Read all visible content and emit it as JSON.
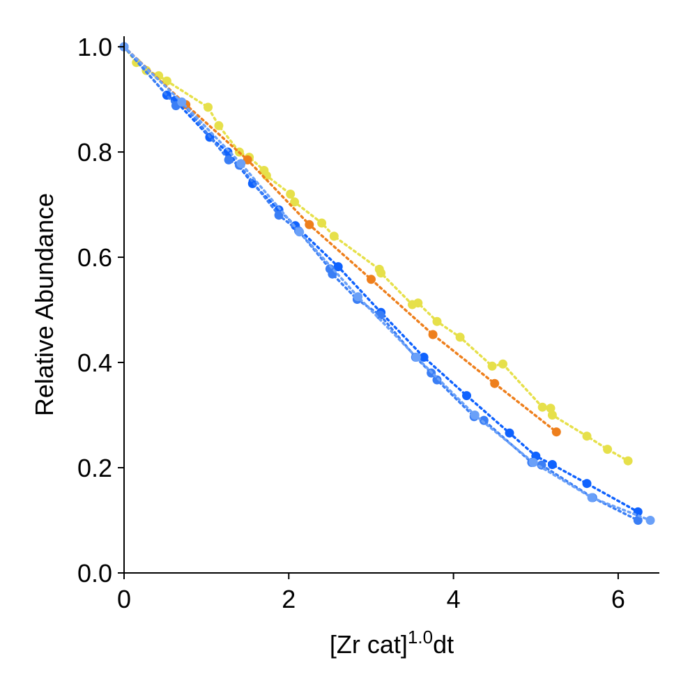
{
  "chart_data": {
    "type": "scatter",
    "title": "",
    "xlabel_base": "[Zr cat]",
    "xlabel_exp": "1.0",
    "xlabel_tail": "dt",
    "ylabel": "Relative Abundance",
    "xlim": [
      0,
      6.5
    ],
    "ylim": [
      0,
      1.02
    ],
    "xticks": [
      0,
      2,
      4,
      6
    ],
    "xtick_labels": [
      "0",
      "2",
      "4",
      "6"
    ],
    "yticks": [
      0,
      0.2,
      0.4,
      0.6,
      0.8,
      1.0
    ],
    "ytick_labels": [
      "0.0",
      "0.2",
      "0.4",
      "0.6",
      "0.8",
      "1.0"
    ],
    "grid": false,
    "legend": "none",
    "series": [
      {
        "color": "#e6e04a",
        "x": [
          0,
          0.15,
          0.27,
          0.42,
          0.52,
          1.02,
          1.15,
          1.4,
          1.52,
          1.7,
          1.73,
          2.02,
          2.07,
          2.4,
          2.55,
          3.1,
          3.12,
          3.5,
          3.57,
          3.8,
          4.08,
          4.47,
          4.6,
          5.08,
          5.18,
          5.2,
          5.62,
          5.87,
          6.12
        ],
        "y": [
          1.0,
          0.97,
          0.955,
          0.945,
          0.935,
          0.885,
          0.85,
          0.8,
          0.79,
          0.765,
          0.755,
          0.72,
          0.705,
          0.665,
          0.64,
          0.577,
          0.57,
          0.51,
          0.513,
          0.478,
          0.448,
          0.393,
          0.397,
          0.315,
          0.313,
          0.3,
          0.26,
          0.235,
          0.213
        ]
      },
      {
        "color": "#ee7f1c",
        "x": [
          0,
          0.75,
          1.5,
          2.25,
          3.0,
          3.75,
          4.5,
          5.25
        ],
        "y": [
          1.0,
          0.89,
          0.785,
          0.662,
          0.558,
          0.453,
          0.36,
          0.268
        ]
      },
      {
        "color": "#0f62fe",
        "x": [
          0,
          0.52,
          0.62,
          1.04,
          1.26,
          1.56,
          1.88,
          2.08,
          2.6,
          3.12,
          3.64,
          4.16,
          4.68,
          5.0,
          5.2,
          5.62,
          6.24
        ],
        "y": [
          1.0,
          0.908,
          0.898,
          0.828,
          0.8,
          0.74,
          0.69,
          0.66,
          0.582,
          0.495,
          0.41,
          0.337,
          0.266,
          0.222,
          0.206,
          0.17,
          0.116
        ]
      },
      {
        "color": "#3a7ef5",
        "x": [
          0,
          0.63,
          0.7,
          1.27,
          1.4,
          1.88,
          2.12,
          2.5,
          2.53,
          2.83,
          3.11,
          3.54,
          3.73,
          3.8,
          4.25,
          4.37,
          4.95,
          5.07,
          5.69,
          6.24
        ],
        "y": [
          1.0,
          0.888,
          0.895,
          0.785,
          0.775,
          0.68,
          0.65,
          0.578,
          0.568,
          0.52,
          0.49,
          0.41,
          0.38,
          0.367,
          0.297,
          0.29,
          0.21,
          0.205,
          0.143,
          0.1
        ]
      },
      {
        "color": "#6aa0f8",
        "x": [
          0,
          0.7,
          1.42,
          2.13,
          2.84,
          3.55,
          4.26,
          4.97,
          5.68,
          6.39
        ],
        "y": [
          1.0,
          0.895,
          0.778,
          0.648,
          0.525,
          0.41,
          0.3,
          0.21,
          0.143,
          0.1
        ]
      }
    ]
  }
}
